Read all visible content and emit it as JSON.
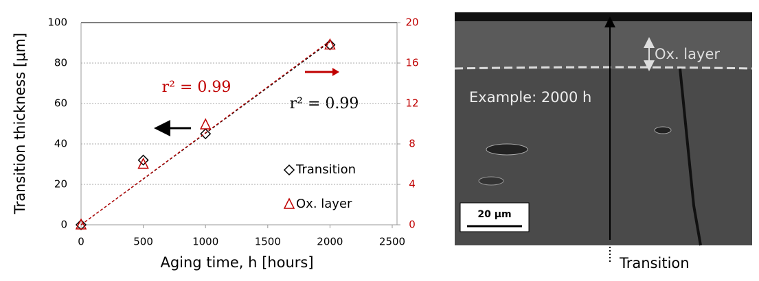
{
  "chart_data": {
    "type": "scatter",
    "xlabel": "Aging time, h [hours]",
    "ylabel": "Transition thickness [μm]",
    "x": [
      0,
      500,
      1000,
      2000
    ],
    "series": [
      {
        "name": "Transition",
        "color": "#000000",
        "marker": "diamond",
        "values": [
          0,
          32,
          45,
          89
        ],
        "trend_values": [
          0,
          90.5
        ]
      },
      {
        "name": "Ox. layer",
        "color": "#c00000",
        "marker": "triangle",
        "axis": "y2",
        "values": [
          0,
          6,
          9.9,
          17.8
        ],
        "trend_values": [
          0,
          18.2
        ]
      }
    ],
    "trend_x": [
      0,
      2000
    ],
    "annotations": [
      "r² = 0.99",
      "r² = 0.99"
    ],
    "xlim": [
      0,
      2500
    ],
    "xticks": [
      0,
      500,
      1000,
      1500,
      2000,
      2500
    ],
    "ylim": [
      0,
      100
    ],
    "yticks": [
      0,
      20,
      40,
      60,
      80,
      100
    ],
    "y2lim": [
      0,
      20
    ],
    "y2ticks": [
      0,
      4,
      8,
      12,
      16,
      20
    ],
    "grid": true,
    "legend": "lower right"
  },
  "image_panel": {
    "oxide_label": "Ox. layer",
    "example_label": "Example: 2000 h",
    "scale_bar": "20 μm",
    "transition_label": "Transition"
  }
}
